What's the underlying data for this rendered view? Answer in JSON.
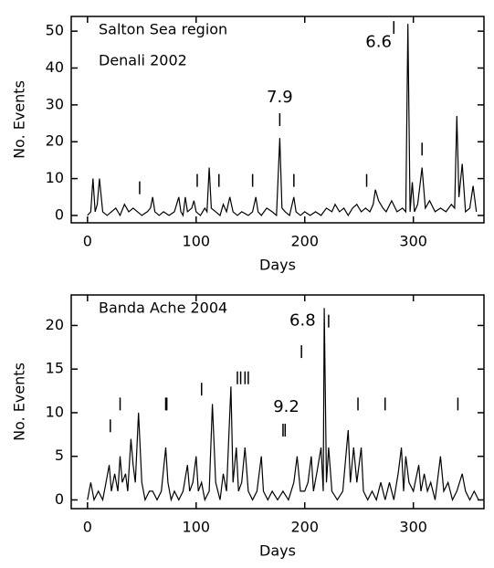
{
  "chart_data": [
    {
      "type": "line",
      "labels": [
        "Salton Sea region",
        "Denali 2002"
      ],
      "xlabel": "Days",
      "ylabel": "No. Events",
      "color": "#000000",
      "xlim": [
        -15,
        365
      ],
      "ylim": [
        -2,
        54
      ],
      "xticks": [
        0,
        100,
        200,
        300
      ],
      "yticks": [
        0,
        10,
        20,
        30,
        40,
        50
      ],
      "x": [
        0,
        3,
        5,
        7,
        9,
        11,
        14,
        18,
        22,
        26,
        30,
        34,
        38,
        42,
        46,
        50,
        55,
        58,
        60,
        62,
        66,
        70,
        75,
        80,
        84,
        86,
        88,
        90,
        92,
        96,
        98,
        100,
        104,
        108,
        110,
        112,
        114,
        118,
        122,
        125,
        128,
        131,
        134,
        138,
        142,
        148,
        152,
        155,
        157,
        160,
        165,
        170,
        174,
        177,
        179,
        182,
        186,
        190,
        192,
        196,
        200,
        205,
        210,
        215,
        220,
        225,
        228,
        232,
        236,
        240,
        244,
        248,
        252,
        256,
        260,
        263,
        265,
        268,
        272,
        275,
        280,
        285,
        290,
        293,
        295,
        297,
        299,
        301,
        304,
        308,
        311,
        315,
        320,
        325,
        330,
        335,
        338,
        340,
        342,
        345,
        348,
        352,
        355,
        358
      ],
      "values": [
        0,
        1,
        10,
        1,
        3,
        10,
        1,
        0,
        1,
        2,
        0,
        3,
        1,
        2,
        1,
        0,
        1,
        2,
        5,
        1,
        0,
        1,
        0,
        1,
        5,
        1,
        0,
        5,
        1,
        2,
        4,
        1,
        0,
        2,
        1,
        13,
        2,
        1,
        0,
        3,
        1,
        5,
        1,
        0,
        1,
        0,
        1,
        5,
        1,
        0,
        2,
        1,
        0,
        21,
        2,
        1,
        0,
        5,
        1,
        0,
        1,
        0,
        1,
        0,
        2,
        1,
        3,
        1,
        2,
        0,
        2,
        3,
        1,
        2,
        1,
        3,
        7,
        4,
        2,
        1,
        4,
        1,
        2,
        1,
        52,
        1,
        9,
        1,
        3,
        13,
        2,
        4,
        1,
        2,
        1,
        3,
        2,
        27,
        5,
        14,
        1,
        2,
        8,
        1
      ],
      "events": {
        "x": [
          48,
          101,
          121,
          152,
          177,
          190,
          257,
          282,
          308
        ],
        "y": [
          7.5,
          9.5,
          9.5,
          9.5,
          26,
          9.5,
          9.5,
          51,
          18
        ]
      },
      "annotations": [
        {
          "text": "7.9",
          "x": 177,
          "y": 32
        },
        {
          "text": "6.6",
          "x": 268,
          "y": 47
        }
      ]
    },
    {
      "type": "line",
      "labels": [
        "Banda Ache 2004"
      ],
      "xlabel": "Days",
      "ylabel": "No. Events",
      "color": "#000000",
      "xlim": [
        -15,
        365
      ],
      "ylim": [
        -1,
        23.5
      ],
      "xticks": [
        0,
        100,
        200,
        300
      ],
      "yticks": [
        0,
        5,
        10,
        15,
        20
      ],
      "x": [
        0,
        3,
        6,
        10,
        14,
        17,
        20,
        22,
        25,
        28,
        30,
        32,
        35,
        37,
        40,
        42,
        44,
        47,
        50,
        53,
        57,
        60,
        64,
        68,
        72,
        74,
        77,
        80,
        84,
        88,
        92,
        94,
        97,
        100,
        102,
        105,
        108,
        112,
        115,
        118,
        122,
        125,
        128,
        132,
        134,
        137,
        139,
        142,
        145,
        148,
        152,
        156,
        160,
        162,
        166,
        170,
        175,
        180,
        185,
        190,
        193,
        196,
        200,
        203,
        206,
        208,
        211,
        215,
        217,
        218,
        220,
        222,
        225,
        230,
        235,
        240,
        242,
        245,
        248,
        252,
        254,
        258,
        262,
        266,
        270,
        274,
        278,
        282,
        286,
        289,
        291,
        293,
        296,
        300,
        305,
        307,
        310,
        313,
        316,
        320,
        325,
        328,
        332,
        336,
        340,
        345,
        348,
        352,
        356,
        360
      ],
      "values": [
        0,
        2,
        0,
        1,
        0,
        2,
        4,
        1,
        3,
        1,
        5,
        2,
        3,
        1,
        7,
        4,
        2,
        10,
        2,
        0,
        1,
        1,
        0,
        1,
        6,
        2,
        0,
        1,
        0,
        1,
        4,
        1,
        2,
        5,
        1,
        2,
        0,
        1,
        11,
        2,
        0,
        3,
        1,
        13,
        2,
        6,
        1,
        2,
        6,
        1,
        0,
        1,
        5,
        1,
        0,
        1,
        0,
        1,
        0,
        2,
        5,
        1,
        1,
        2,
        5,
        1,
        3,
        6,
        1,
        22,
        2,
        6,
        1,
        0,
        1,
        8,
        2,
        6,
        2,
        6,
        1,
        0,
        1,
        0,
        2,
        0,
        2,
        0,
        3,
        6,
        1,
        5,
        2,
        1,
        4,
        1,
        3,
        1,
        2,
        0,
        5,
        1,
        2,
        0,
        1,
        3,
        1,
        0,
        1,
        0
      ],
      "events": {
        "x": [
          21,
          30,
          72,
          73,
          105,
          138,
          141,
          145,
          148,
          180,
          182,
          197,
          222,
          249,
          274,
          341
        ],
        "y": [
          8.5,
          11,
          11,
          11,
          12.7,
          14,
          14,
          14,
          14,
          8,
          8,
          17,
          20.5,
          11,
          11,
          11
        ]
      },
      "annotations": [
        {
          "text": "6.8",
          "x": 198,
          "y": 20.5
        },
        {
          "text": "9.2",
          "x": 183,
          "y": 10.6
        }
      ]
    }
  ]
}
